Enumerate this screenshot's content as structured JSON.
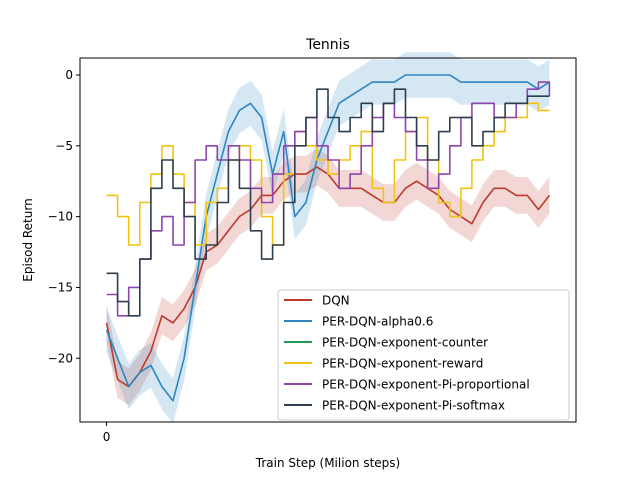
{
  "chart_data": {
    "type": "line",
    "title": "Tennis",
    "xlabel": "Train Step (Milion steps)",
    "ylabel": "Episod Return",
    "x_ticks": [
      0
    ],
    "y_ticks": [
      0,
      -5,
      -10,
      -15,
      -20
    ],
    "xlim": [
      -1.2,
      21.2
    ],
    "ylim": [
      -24.5,
      1.2
    ],
    "legend_position": "lower right",
    "grid": false,
    "series": [
      {
        "name": "DQN",
        "color": "#c0392b",
        "band": true,
        "band_width": 1.3,
        "x": [
          0,
          0.5,
          1,
          1.5,
          2,
          2.5,
          3,
          3.5,
          4,
          4.5,
          5,
          5.5,
          6,
          6.5,
          7,
          7.5,
          8,
          8.5,
          9,
          9.5,
          10,
          10.5,
          11,
          11.5,
          12,
          12.5,
          13,
          13.5,
          14,
          14.5,
          15,
          15.5,
          16,
          16.5,
          17,
          17.5,
          18,
          18.5,
          19,
          19.5,
          20
        ],
        "values": [
          -17.5,
          -21.5,
          -22,
          -21,
          -19.5,
          -17,
          -17.5,
          -16.5,
          -15,
          -12.5,
          -12,
          -11,
          -10,
          -9.5,
          -8.5,
          -8.5,
          -7.5,
          -7,
          -7,
          -6.5,
          -7,
          -8,
          -8,
          -8,
          -8.5,
          -9,
          -9,
          -8,
          -7.5,
          -8,
          -8.5,
          -9.5,
          -10,
          -10.5,
          -9,
          -8,
          -8,
          -8.5,
          -8.5,
          -9.5,
          -8.5
        ]
      },
      {
        "name": "PER-DQN-alpha0.6",
        "color": "#2e86c1",
        "band": true,
        "band_width": 1.6,
        "x": [
          0,
          0.5,
          1,
          1.5,
          2,
          2.5,
          3,
          3.5,
          4,
          4.5,
          5,
          5.5,
          6,
          6.5,
          7,
          7.5,
          8,
          8.5,
          9,
          9.5,
          10,
          10.5,
          11,
          11.5,
          12,
          12.5,
          13,
          13.5,
          14,
          14.5,
          15,
          15.5,
          16,
          16.5,
          17,
          17.5,
          18,
          18.5,
          19,
          19.5,
          20
        ],
        "values": [
          -18,
          -20,
          -22,
          -21,
          -20.5,
          -22,
          -23,
          -20,
          -15,
          -10,
          -7,
          -4,
          -2.5,
          -2,
          -3,
          -7,
          -4,
          -10,
          -9,
          -6,
          -4,
          -2,
          -1.5,
          -1,
          -0.5,
          -0.5,
          -0.5,
          0,
          0,
          0,
          0,
          0,
          -0.5,
          -0.5,
          -0.5,
          -0.5,
          -0.5,
          -0.5,
          -0.5,
          -1,
          -0.5
        ]
      },
      {
        "name": "PER-DQN-exponent-counter",
        "color": "#229954",
        "band": false,
        "x": [],
        "values": []
      },
      {
        "name": "PER-DQN-exponent-reward",
        "color": "#f1c40f",
        "band": false,
        "x": [
          0,
          0.5,
          1,
          1.5,
          2,
          2.5,
          3,
          3.5,
          4,
          4.5,
          5,
          5.5,
          6,
          6.5,
          7,
          7.5,
          8,
          8.5,
          9,
          9.5,
          10,
          10.5,
          11,
          11.5,
          12,
          12.5,
          13,
          13.5,
          14,
          14.5,
          15,
          15.5,
          16,
          16.5,
          17,
          17.5,
          18,
          18.5,
          19,
          19.5,
          20
        ],
        "values": [
          -8.5,
          -10,
          -12,
          -9,
          -7,
          -5,
          -7,
          -9,
          -12,
          -9,
          -8,
          -6,
          -5,
          -6,
          -10,
          -12,
          -7,
          -4,
          -5,
          -6,
          -7,
          -6,
          -5,
          -4,
          -8,
          -9,
          -6,
          -4,
          -3,
          -6,
          -9,
          -10,
          -8,
          -6,
          -5,
          -4,
          -3,
          -3,
          -2,
          -2.5,
          -2.5
        ]
      },
      {
        "name": "PER-DQN-exponent-Pi-proportional",
        "color": "#8e44ad",
        "band": false,
        "x": [
          0,
          0.5,
          1,
          1.5,
          2,
          2.5,
          3,
          3.5,
          4,
          4.5,
          5,
          5.5,
          6,
          6.5,
          7,
          7.5,
          8,
          8.5,
          9,
          9.5,
          10,
          10.5,
          11,
          11.5,
          12,
          12.5,
          13,
          13.5,
          14,
          14.5,
          15,
          15.5,
          16,
          16.5,
          17,
          17.5,
          18,
          18.5,
          19,
          19.5,
          20
        ],
        "values": [
          -15.5,
          -17,
          -15,
          -13,
          -11,
          -10,
          -12,
          -9,
          -6,
          -5,
          -6,
          -5,
          -6,
          -8,
          -9,
          -7,
          -5,
          -4,
          -3,
          -5,
          -6,
          -8,
          -7,
          -5,
          -3,
          -2,
          -3,
          -4,
          -6,
          -8,
          -7,
          -5,
          -3,
          -2,
          -2,
          -3,
          -3,
          -2,
          -1,
          -0.5,
          -1.5
        ]
      },
      {
        "name": "PER-DQN-exponent-Pi-softmax",
        "color": "#2c3e50",
        "band": false,
        "x": [
          0,
          0.5,
          1,
          1.5,
          2,
          2.5,
          3,
          3.5,
          4,
          4.5,
          5,
          5.5,
          6,
          6.5,
          7,
          7.5,
          8,
          8.5,
          9,
          9.5,
          10,
          10.5,
          11,
          11.5,
          12,
          12.5,
          13,
          13.5,
          14,
          14.5,
          15,
          15.5,
          16,
          16.5,
          17,
          17.5,
          18,
          18.5,
          19,
          19.5,
          20
        ],
        "values": [
          -14,
          -16,
          -17,
          -13,
          -8,
          -6,
          -8,
          -10,
          -13,
          -12,
          -9,
          -6,
          -8,
          -11,
          -13,
          -12,
          -9,
          -5,
          -3,
          -1,
          -3,
          -4,
          -3,
          -2,
          -4,
          -2,
          -1,
          -3,
          -5,
          -6,
          -4,
          -3,
          -3,
          -5,
          -4,
          -3,
          -2,
          -2,
          -1.5,
          -1.5,
          -1.5
        ]
      }
    ]
  }
}
